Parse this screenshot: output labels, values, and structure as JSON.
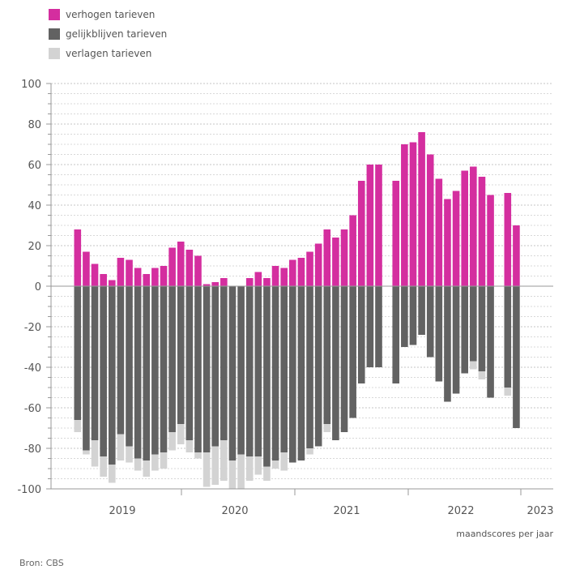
{
  "chart_data": {
    "type": "bar",
    "stacked": true,
    "series": [
      {
        "name": "verhogen tarieven",
        "color": "#d42e9f"
      },
      {
        "name": "gelijkblijven tarieven",
        "color": "#626262"
      },
      {
        "name": "verlagen tarieven",
        "color": "#d3d3d3"
      }
    ],
    "years": [
      {
        "label": "2019",
        "months": [
          [
            28,
            -66,
            -72
          ],
          [
            17,
            -81,
            -83
          ],
          [
            11,
            -76,
            -89
          ],
          [
            6,
            -84,
            -94
          ],
          [
            3,
            -88,
            -97
          ],
          [
            14,
            -73,
            -86
          ],
          [
            13,
            -79,
            -87
          ],
          [
            9,
            -85,
            -91
          ],
          [
            6,
            -86,
            -94
          ],
          [
            9,
            -83,
            -91
          ],
          [
            10,
            -82,
            -90
          ],
          [
            19,
            -72,
            -81
          ]
        ]
      },
      {
        "label": "2020",
        "months": [
          [
            22,
            -68,
            -78
          ],
          [
            18,
            -76,
            -82
          ],
          [
            15,
            -82,
            -85
          ],
          [
            1,
            -82,
            -99
          ],
          [
            2,
            -79,
            -98
          ],
          [
            4,
            -76,
            -96
          ],
          [
            0,
            -86,
            -100
          ],
          [
            0,
            -83,
            -100
          ],
          [
            4,
            -84,
            -96
          ],
          [
            7,
            -84,
            -93
          ],
          [
            4,
            -89,
            -96
          ],
          [
            10,
            -86,
            -90
          ]
        ]
      },
      {
        "label": "2021",
        "months": [
          [
            9,
            -82,
            -91
          ],
          [
            13,
            -87,
            -87
          ],
          [
            14,
            -86,
            -86
          ],
          [
            17,
            -80,
            -83
          ],
          [
            21,
            -79,
            -79
          ],
          [
            28,
            -68,
            -72
          ],
          [
            24,
            -76,
            -76
          ],
          [
            28,
            -72,
            -72
          ],
          [
            35,
            -65,
            -65
          ],
          [
            52,
            -48,
            -48
          ],
          [
            60,
            -40,
            -40
          ],
          [
            60,
            -40,
            -40
          ]
        ]
      },
      {
        "label": "2022",
        "months": [
          [
            null,
            null,
            null
          ],
          [
            52,
            -48,
            -48
          ],
          [
            70,
            -30,
            -30
          ],
          [
            71,
            -29,
            -29
          ],
          [
            76,
            -24,
            -24
          ],
          [
            65,
            -35,
            -35
          ],
          [
            53,
            -47,
            -47
          ],
          [
            43,
            -57,
            -57
          ],
          [
            47,
            -53,
            -53
          ],
          [
            57,
            -43,
            -43
          ],
          [
            59,
            -37,
            -41
          ],
          [
            54,
            -42,
            -46
          ],
          [
            45,
            -55,
            -55
          ]
        ]
      },
      {
        "label": "2023",
        "months": [
          [
            null,
            null,
            null
          ],
          [
            46,
            -50,
            -54
          ],
          [
            30,
            -70,
            -70
          ]
        ]
      }
    ],
    "ylim": [
      -100,
      100
    ],
    "yticks": [
      -100,
      -80,
      -60,
      -40,
      -20,
      0,
      20,
      40,
      60,
      80,
      100
    ],
    "xlabel": "maandscores per jaar",
    "grid": true,
    "legend_position": "top-left"
  },
  "source": "Bron: CBS"
}
